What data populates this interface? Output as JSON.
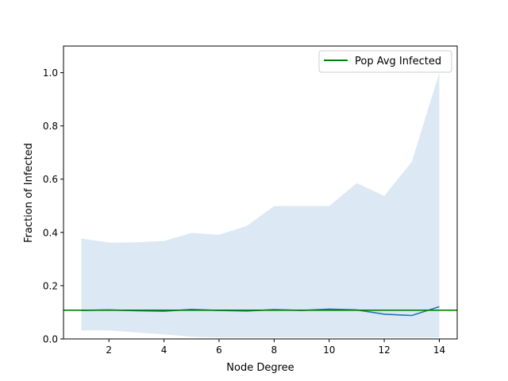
{
  "chart_data": {
    "type": "line",
    "title": "",
    "xlabel": "Node Degree",
    "ylabel": "Fraction of Infected",
    "xlim": [
      0.35,
      14.65
    ],
    "ylim": [
      0.0,
      1.1
    ],
    "grid": false,
    "legend_position": "upper right",
    "x_ticks": [
      2,
      4,
      6,
      8,
      10,
      12,
      14
    ],
    "x_tick_labels": [
      "2",
      "4",
      "6",
      "8",
      "10",
      "12",
      "14"
    ],
    "y_ticks": [
      0.0,
      0.2,
      0.4,
      0.6,
      0.8,
      1.0
    ],
    "y_tick_labels": [
      "0.0",
      "0.2",
      "0.4",
      "0.6",
      "0.8",
      "1.0"
    ],
    "x": [
      1,
      2,
      3,
      4,
      5,
      6,
      7,
      8,
      9,
      10,
      11,
      12,
      13,
      14
    ],
    "series": [
      {
        "values": [
          0.107,
          0.109,
          0.106,
          0.104,
          0.111,
          0.107,
          0.105,
          0.11,
          0.107,
          0.112,
          0.109,
          0.093,
          0.088,
          0.121
        ],
        "color": "#1f77b4"
      }
    ],
    "band": {
      "upper": [
        0.377,
        0.362,
        0.363,
        0.368,
        0.398,
        0.391,
        0.424,
        0.499,
        0.499,
        0.499,
        0.585,
        0.537,
        0.665,
        1.0
      ],
      "lower": [
        0.032,
        0.032,
        0.024,
        0.017,
        0.008,
        0.005,
        0.005,
        0.005,
        0.005,
        0.005,
        0.005,
        0.005,
        0.005,
        0.005
      ],
      "color": "#dce8f3"
    },
    "hline": {
      "y": 0.108,
      "label": "Pop Avg Infected",
      "color": "#008000"
    }
  }
}
